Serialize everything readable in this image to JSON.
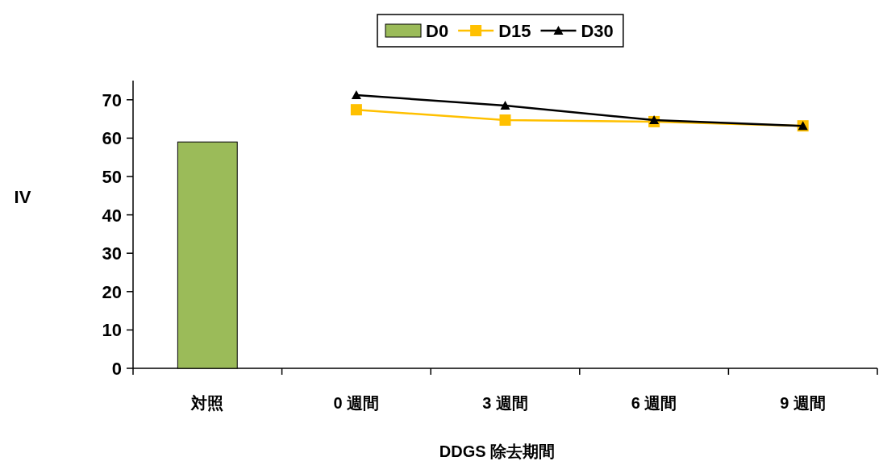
{
  "chart_data": {
    "type": "bar",
    "xlabel": "DDGS 除去期間",
    "ylabel": "IV",
    "categories": [
      "対照",
      "0 週間",
      "3 週間",
      "6 週間",
      "9 週間"
    ],
    "ylim": [
      0,
      75
    ],
    "yticks": [
      0,
      10,
      20,
      30,
      40,
      50,
      60,
      70
    ],
    "grid": false,
    "legend": "top",
    "series": [
      {
        "name": "D0",
        "color": "#9bbb59",
        "values": [
          59.0,
          null,
          null,
          null,
          null
        ]
      },
      {
        "name": "D15",
        "type": "line",
        "color": "#ffc000",
        "marker": "square",
        "values": [
          null,
          67.4,
          64.7,
          64.3,
          63.2
        ]
      },
      {
        "name": "D30",
        "type": "line",
        "color": "#000000",
        "marker": "triangle",
        "values": [
          null,
          71.2,
          68.5,
          64.7,
          63.2
        ]
      }
    ]
  }
}
